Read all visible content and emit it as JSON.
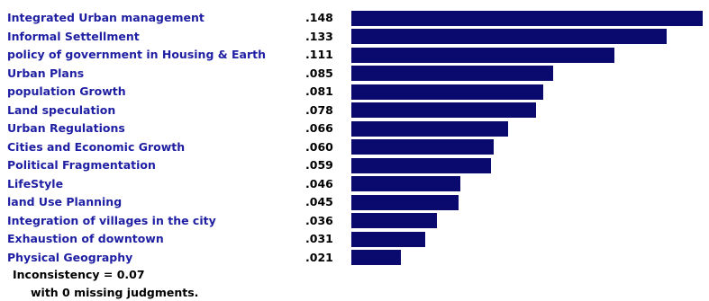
{
  "chart_data": {
    "type": "bar",
    "orientation": "horizontal",
    "categories": [
      "Integrated Urban management",
      "Informal Settellment",
      "policy of government in Housing & Earth",
      "Urban Plans",
      "population Growth",
      "Land speculation",
      "Urban Regulations",
      "Cities and Economic Growth",
      "Political Fragmentation",
      "LifeStyle",
      "land Use Planning",
      "Integration of villages in the city",
      "Exhaustion of downtown",
      "Physical Geography"
    ],
    "values": [
      0.148,
      0.133,
      0.111,
      0.085,
      0.081,
      0.078,
      0.066,
      0.06,
      0.059,
      0.046,
      0.045,
      0.036,
      0.031,
      0.021
    ],
    "value_labels": [
      ".148",
      ".133",
      ".111",
      ".085",
      ".081",
      ".078",
      ".066",
      ".060",
      ".059",
      ".046",
      ".045",
      ".036",
      ".031",
      ".021"
    ],
    "xlim": [
      0,
      0.15
    ],
    "grid": false,
    "legend": "none"
  },
  "footer": {
    "inconsistency": "Inconsistency = 0.07",
    "missing": "with 0  missing judgments."
  },
  "colors": {
    "bar": "#0a0a6e",
    "label": "#1f1fa3",
    "value": "#000000"
  }
}
